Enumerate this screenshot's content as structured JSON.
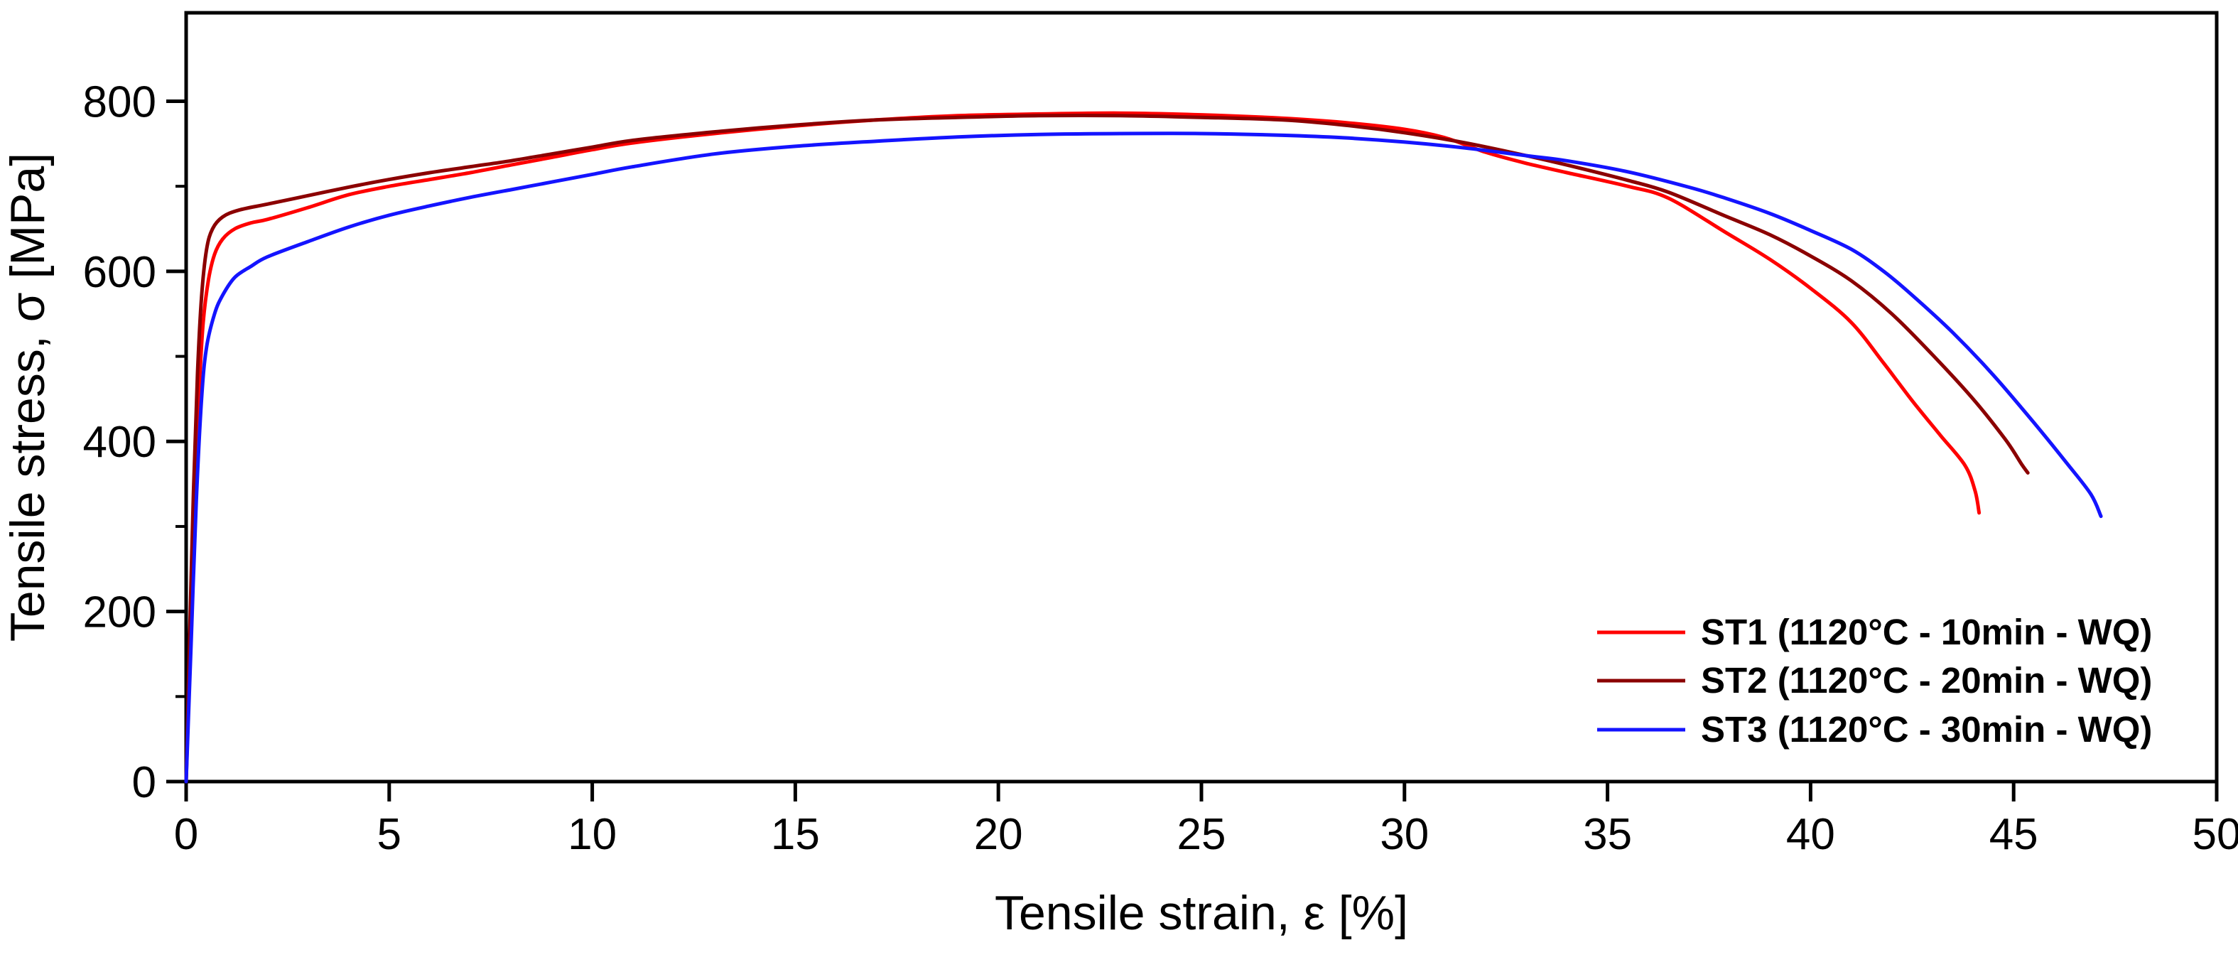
{
  "chart_data": {
    "type": "line",
    "title": "",
    "xlabel": "Tensile strain, ε [%]",
    "ylabel": "Tensile stress, σ [MPa]",
    "xlim": [
      0,
      50
    ],
    "ylim": [
      0,
      904
    ],
    "x_major_ticks": [
      0,
      5,
      10,
      15,
      20,
      25,
      30,
      35,
      40,
      45,
      50
    ],
    "y_major_ticks": [
      0,
      200,
      400,
      600,
      800
    ],
    "y_minor_ticks": [
      100,
      300,
      500,
      700
    ],
    "grid": false,
    "frame": true,
    "axis_color": "#000000",
    "legend_position": "inside-bottom-right",
    "series": [
      {
        "name": "ST1 (1120°C - 10min - WQ)",
        "color": "#FF0000",
        "points": [
          [
            0,
            0
          ],
          [
            0.1,
            160
          ],
          [
            0.22,
            340
          ],
          [
            0.32,
            460
          ],
          [
            0.42,
            540
          ],
          [
            0.55,
            590
          ],
          [
            0.7,
            620
          ],
          [
            0.9,
            638
          ],
          [
            1.2,
            650
          ],
          [
            1.6,
            657
          ],
          [
            2,
            661
          ],
          [
            3,
            675
          ],
          [
            4,
            690
          ],
          [
            5,
            700
          ],
          [
            6,
            708
          ],
          [
            7,
            716
          ],
          [
            8,
            725
          ],
          [
            9,
            734
          ],
          [
            10,
            743
          ],
          [
            11,
            751
          ],
          [
            13,
            762
          ],
          [
            15,
            771
          ],
          [
            17,
            778
          ],
          [
            19,
            783
          ],
          [
            21,
            785
          ],
          [
            23,
            786
          ],
          [
            25,
            784
          ],
          [
            27,
            780
          ],
          [
            28.5,
            775
          ],
          [
            30,
            767
          ],
          [
            31,
            757
          ],
          [
            32,
            740
          ],
          [
            33,
            727
          ],
          [
            34,
            716
          ],
          [
            35.5,
            700
          ],
          [
            36.5,
            686
          ],
          [
            37.9,
            646
          ],
          [
            39,
            614
          ],
          [
            40,
            580
          ],
          [
            41,
            540
          ],
          [
            41.8,
            492
          ],
          [
            42.5,
            448
          ],
          [
            43.2,
            407
          ],
          [
            43.8,
            372
          ],
          [
            44.05,
            342
          ],
          [
            44.15,
            316
          ]
        ]
      },
      {
        "name": "ST2 (1120°C - 20min - WQ)",
        "color": "#8B0000",
        "points": [
          [
            0,
            0
          ],
          [
            0.08,
            160
          ],
          [
            0.18,
            340
          ],
          [
            0.28,
            480
          ],
          [
            0.38,
            570
          ],
          [
            0.5,
            625
          ],
          [
            0.65,
            650
          ],
          [
            0.9,
            664
          ],
          [
            1.3,
            672
          ],
          [
            2,
            679
          ],
          [
            3,
            689
          ],
          [
            4,
            699
          ],
          [
            5,
            708
          ],
          [
            6,
            716
          ],
          [
            7,
            723
          ],
          [
            8,
            730
          ],
          [
            9,
            738
          ],
          [
            10,
            746
          ],
          [
            11,
            754
          ],
          [
            13,
            764
          ],
          [
            15,
            772
          ],
          [
            17,
            778
          ],
          [
            19,
            781
          ],
          [
            21,
            783
          ],
          [
            23,
            783
          ],
          [
            25,
            781
          ],
          [
            27,
            778
          ],
          [
            28.5,
            772
          ],
          [
            30,
            763
          ],
          [
            31.5,
            751
          ],
          [
            33,
            736
          ],
          [
            34,
            725
          ],
          [
            35.5,
            707
          ],
          [
            36.5,
            693
          ],
          [
            37.9,
            665
          ],
          [
            39,
            643
          ],
          [
            40,
            618
          ],
          [
            41,
            589
          ],
          [
            42,
            550
          ],
          [
            43,
            502
          ],
          [
            44,
            450
          ],
          [
            44.8,
            402
          ],
          [
            45.2,
            373
          ],
          [
            45.35,
            363
          ]
        ]
      },
      {
        "name": "ST3 (1120°C - 30min - WQ)",
        "color": "#1414FF",
        "points": [
          [
            0,
            0
          ],
          [
            0.12,
            160
          ],
          [
            0.25,
            330
          ],
          [
            0.38,
            450
          ],
          [
            0.5,
            510
          ],
          [
            0.7,
            550
          ],
          [
            0.9,
            572
          ],
          [
            1.2,
            593
          ],
          [
            1.6,
            606
          ],
          [
            2,
            617
          ],
          [
            3,
            635
          ],
          [
            4,
            652
          ],
          [
            5,
            666
          ],
          [
            6,
            677
          ],
          [
            7,
            687
          ],
          [
            8,
            696
          ],
          [
            9,
            705
          ],
          [
            10,
            714
          ],
          [
            11,
            723
          ],
          [
            13,
            738
          ],
          [
            15,
            747
          ],
          [
            17,
            753
          ],
          [
            19,
            758
          ],
          [
            21,
            761
          ],
          [
            23,
            762
          ],
          [
            25,
            762
          ],
          [
            27,
            760
          ],
          [
            28.5,
            757
          ],
          [
            30,
            752
          ],
          [
            31.5,
            745
          ],
          [
            33,
            736
          ],
          [
            34,
            730
          ],
          [
            35.5,
            717
          ],
          [
            37,
            699
          ],
          [
            37.9,
            686
          ],
          [
            39,
            668
          ],
          [
            40,
            648
          ],
          [
            41,
            626
          ],
          [
            41.8,
            600
          ],
          [
            42.5,
            572
          ],
          [
            43.5,
            528
          ],
          [
            44.5,
            478
          ],
          [
            45.5,
            422
          ],
          [
            46.3,
            375
          ],
          [
            46.9,
            338
          ],
          [
            47.15,
            312
          ]
        ]
      }
    ]
  }
}
